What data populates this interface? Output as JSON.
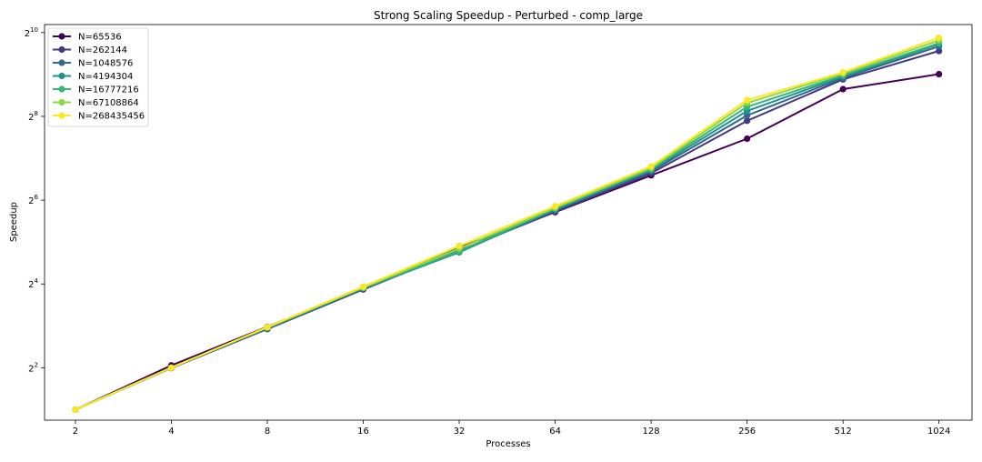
{
  "chart_data": {
    "type": "line",
    "title": "Strong Scaling Speedup - Perturbed - comp_large",
    "xlabel": "Processes",
    "ylabel": "Speedup",
    "x_scale": "log2",
    "y_scale": "log2",
    "x": [
      2,
      4,
      8,
      16,
      32,
      64,
      128,
      256,
      512,
      1024
    ],
    "x_tick_labels": [
      "2",
      "4",
      "8",
      "16",
      "32",
      "64",
      "128",
      "256",
      "512",
      "1024"
    ],
    "y_ticks": [
      {
        "base": "2",
        "exp": "2",
        "value": 4
      },
      {
        "base": "2",
        "exp": "4",
        "value": 16
      },
      {
        "base": "2",
        "exp": "6",
        "value": 64
      },
      {
        "base": "2",
        "exp": "8",
        "value": 256
      },
      {
        "base": "2",
        "exp": "10",
        "value": 1024
      }
    ],
    "xlim": [
      1.6,
      1300
    ],
    "ylim": [
      1.68,
      1170
    ],
    "grid": false,
    "legend_position": "top-left",
    "series": [
      {
        "name": "N=65536",
        "color": "#440154",
        "values": [
          2,
          4.16,
          7.88,
          14.9,
          29.3,
          52.5,
          96.5,
          177,
          402,
          515
        ]
      },
      {
        "name": "N=262144",
        "color": "#443983",
        "values": [
          2,
          3.98,
          7.58,
          14.6,
          27.8,
          52.8,
          100,
          238,
          472,
          756
        ]
      },
      {
        "name": "N=1048576",
        "color": "#31688e",
        "values": [
          2,
          3.98,
          7.65,
          14.8,
          27.2,
          54.2,
          103,
          260,
          484,
          815
        ]
      },
      {
        "name": "N=4194304",
        "color": "#21918c",
        "values": [
          2,
          4.0,
          7.7,
          14.9,
          27.0,
          55.0,
          105,
          280,
          495,
          845
        ]
      },
      {
        "name": "N=16777216",
        "color": "#35b779",
        "values": [
          2,
          4.0,
          7.75,
          15.0,
          27.5,
          55.8,
          107,
          300,
          505,
          860
        ]
      },
      {
        "name": "N=67108864",
        "color": "#90d743",
        "values": [
          2,
          4.0,
          7.8,
          15.1,
          28.8,
          56.5,
          109,
          320,
          520,
          900
        ]
      },
      {
        "name": "N=268435456",
        "color": "#fde725",
        "values": [
          2,
          4.0,
          7.85,
          15.3,
          30.0,
          58.0,
          112,
          335,
          530,
          940
        ]
      }
    ]
  }
}
